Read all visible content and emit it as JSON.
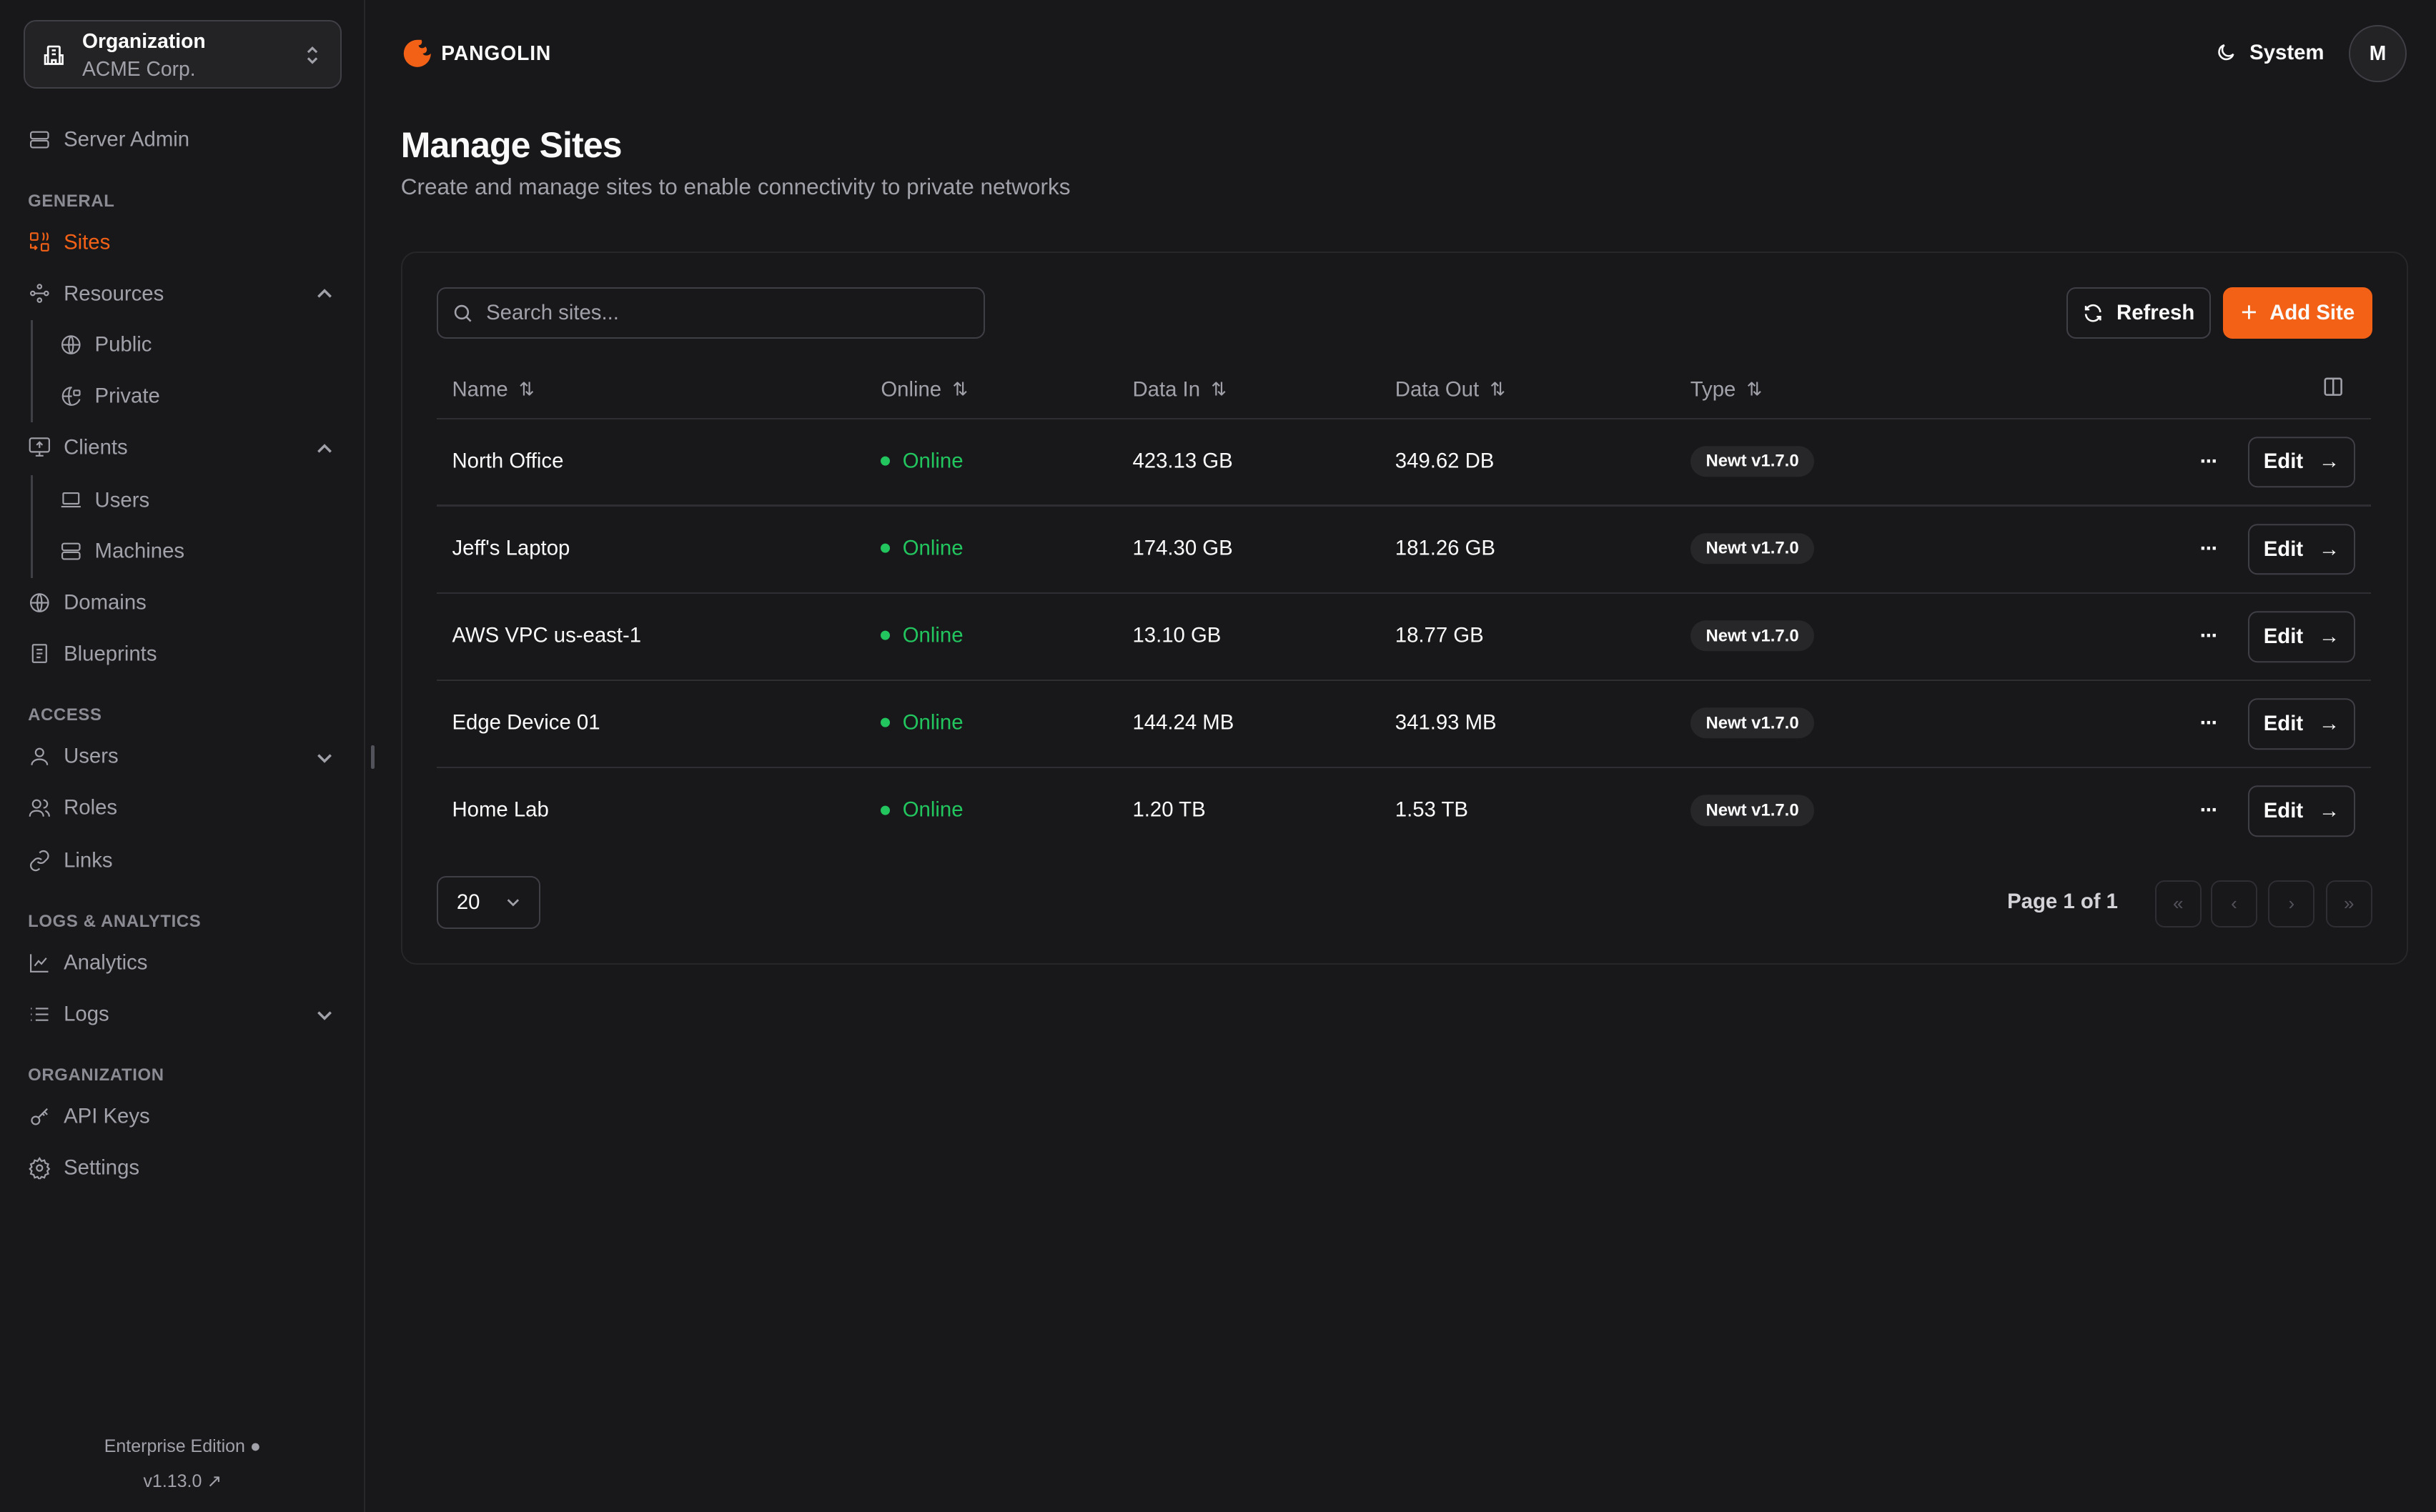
{
  "org": {
    "label": "Organization",
    "name": "ACME Corp."
  },
  "sidebar": {
    "server_admin": "Server Admin",
    "sections": {
      "general": "GENERAL",
      "access": "ACCESS",
      "logs": "LOGS & ANALYTICS",
      "organization": "ORGANIZATION"
    },
    "items": {
      "sites": "Sites",
      "resources": "Resources",
      "public": "Public",
      "private": "Private",
      "clients": "Clients",
      "users_clients": "Users",
      "machines": "Machines",
      "domains": "Domains",
      "blueprints": "Blueprints",
      "users": "Users",
      "roles": "Roles",
      "links": "Links",
      "analytics": "Analytics",
      "logs": "Logs",
      "api_keys": "API Keys",
      "settings": "Settings"
    },
    "footer": {
      "edition": "Enterprise Edition",
      "version": "v1.13.0"
    }
  },
  "header": {
    "brand": "PANGOLIN",
    "theme": "System",
    "avatar": "M"
  },
  "page": {
    "title": "Manage Sites",
    "subtitle": "Create and manage sites to enable connectivity to private networks"
  },
  "toolbar": {
    "search_placeholder": "Search sites...",
    "refresh": "Refresh",
    "add": "Add Site"
  },
  "table": {
    "columns": [
      "Name",
      "Online",
      "Data In",
      "Data Out",
      "Type"
    ],
    "rows": [
      {
        "name": "North Office",
        "online": "Online",
        "data_in": "423.13 GB",
        "data_out": "349.62 DB",
        "type": "Newt v1.7.0"
      },
      {
        "name": "Jeff's Laptop",
        "online": "Online",
        "data_in": "174.30 GB",
        "data_out": "181.26 GB",
        "type": "Newt v1.7.0"
      },
      {
        "name": "AWS VPC us-east-1",
        "online": "Online",
        "data_in": "13.10 GB",
        "data_out": "18.77 GB",
        "type": "Newt v1.7.0"
      },
      {
        "name": "Edge Device 01",
        "online": "Online",
        "data_in": "144.24 MB",
        "data_out": "341.93 MB",
        "type": "Newt v1.7.0"
      },
      {
        "name": "Home Lab",
        "online": "Online",
        "data_in": "1.20 TB",
        "data_out": "1.53 TB",
        "type": "Newt v1.7.0"
      }
    ],
    "edit": "Edit"
  },
  "pagination": {
    "page_size": "20",
    "page_label": "Page 1 of 1"
  },
  "colors": {
    "accent": "#f36117",
    "online": "#22c55e",
    "background": "#18181b"
  }
}
